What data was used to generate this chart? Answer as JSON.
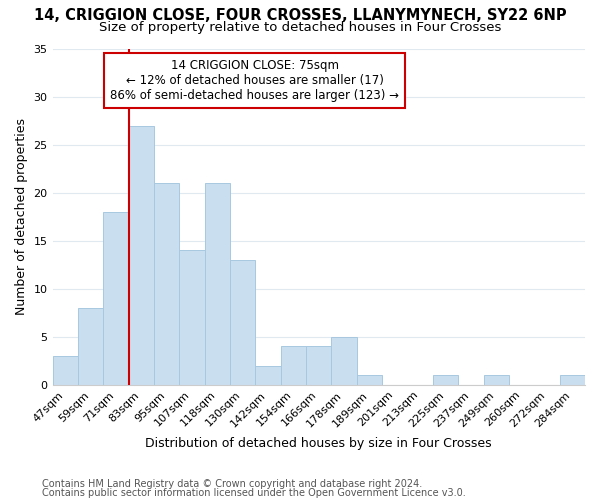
{
  "title1": "14, CRIGGION CLOSE, FOUR CROSSES, LLANYMYNECH, SY22 6NP",
  "title2": "Size of property relative to detached houses in Four Crosses",
  "xlabel": "Distribution of detached houses by size in Four Crosses",
  "ylabel": "Number of detached properties",
  "categories": [
    "47sqm",
    "59sqm",
    "71sqm",
    "83sqm",
    "95sqm",
    "107sqm",
    "118sqm",
    "130sqm",
    "142sqm",
    "154sqm",
    "166sqm",
    "178sqm",
    "189sqm",
    "201sqm",
    "213sqm",
    "225sqm",
    "237sqm",
    "249sqm",
    "260sqm",
    "272sqm",
    "284sqm"
  ],
  "values": [
    3,
    8,
    18,
    27,
    21,
    14,
    21,
    13,
    2,
    4,
    4,
    5,
    1,
    0,
    0,
    1,
    0,
    1,
    0,
    0,
    1
  ],
  "bar_color": "#c9dff0",
  "bar_edge_color": "#a8c8e0",
  "annotation_box_color": "#ffffff",
  "annotation_border_color": "#cc0000",
  "annotation_text_line1": "14 CRIGGION CLOSE: 75sqm",
  "annotation_text_line2": "← 12% of detached houses are smaller (17)",
  "annotation_text_line3": "86% of semi-detached houses are larger (123) →",
  "redline_bar_index": 2,
  "ylim": [
    0,
    35
  ],
  "yticks": [
    0,
    5,
    10,
    15,
    20,
    25,
    30,
    35
  ],
  "bg_color": "#ffffff",
  "grid_color": "#e0e8f0",
  "footnote1": "Contains HM Land Registry data © Crown copyright and database right 2024.",
  "footnote2": "Contains public sector information licensed under the Open Government Licence v3.0.",
  "title1_fontsize": 10.5,
  "title2_fontsize": 9.5,
  "axis_label_fontsize": 9,
  "tick_fontsize": 8,
  "annotation_fontsize": 8.5,
  "footnote_fontsize": 7
}
